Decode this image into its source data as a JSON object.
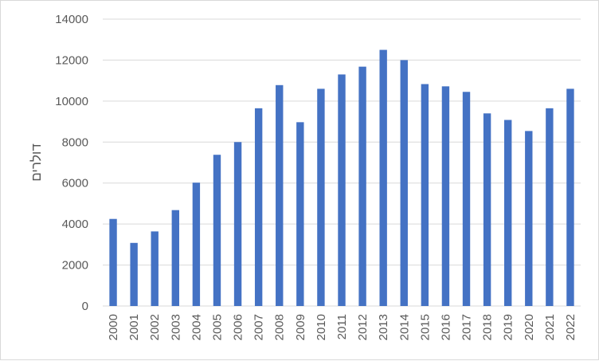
{
  "chart_data": {
    "type": "bar",
    "title": "",
    "xlabel": "",
    "ylabel": "דולרים",
    "categories": [
      "2000",
      "2001",
      "2002",
      "2003",
      "2004",
      "2005",
      "2006",
      "2007",
      "2008",
      "2009",
      "2010",
      "2011",
      "2012",
      "2013",
      "2014",
      "2015",
      "2016",
      "2017",
      "2018",
      "2019",
      "2020",
      "2021",
      "2022"
    ],
    "values": [
      4250,
      3080,
      3640,
      4680,
      6020,
      7380,
      8000,
      9650,
      10780,
      8970,
      10600,
      11300,
      11680,
      12500,
      12000,
      10830,
      10720,
      10450,
      9400,
      9080,
      8540,
      9650,
      10600
    ],
    "ylim": [
      0,
      14000
    ],
    "yticks": [
      0,
      2000,
      4000,
      6000,
      8000,
      10000,
      12000,
      14000
    ],
    "grid": true,
    "legend": "none",
    "bar_color": "#4472C4",
    "grid_color": "#d9d9d9"
  }
}
